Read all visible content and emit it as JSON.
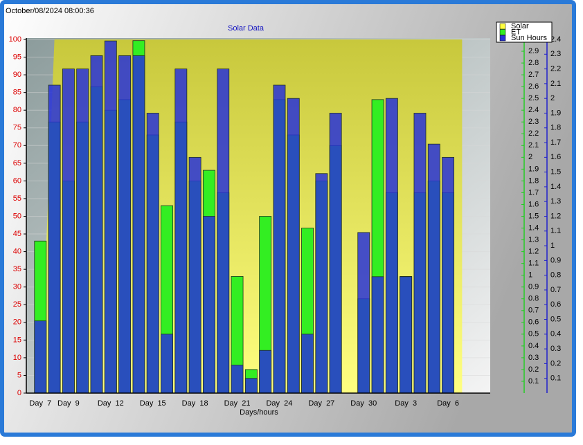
{
  "timestamp": "October/08/2024 08:00:36",
  "chart_data": {
    "type": "bar",
    "title": "Solar Data",
    "xlabel": "Days/hours",
    "categories": [
      "Day  7",
      null,
      "Day  9",
      null,
      null,
      "Day  12",
      null,
      null,
      "Day  15",
      null,
      null,
      "Day  18",
      null,
      null,
      "Day  21",
      null,
      null,
      "Day  24",
      null,
      null,
      "Day  27",
      null,
      null,
      "Day  30",
      null,
      null,
      "Day  3",
      null,
      null,
      "Day  6",
      null
    ],
    "series": [
      {
        "name": "Solar",
        "color": "#ffff40",
        "axis": "y",
        "type": "area",
        "values": [
          0,
          100,
          100,
          100,
          100,
          100,
          100,
          100,
          100,
          100,
          100,
          100,
          100,
          100,
          100,
          100,
          100,
          100,
          100,
          100,
          100,
          100,
          100,
          100,
          100,
          100,
          100,
          100,
          100,
          100,
          100
        ]
      },
      {
        "name": "ET",
        "color": "#33ee22",
        "axis": "y2",
        "values": [
          1.29,
          2.3,
          1.8,
          2.3,
          2.6,
          2.4,
          2.49,
          2.99,
          2.19,
          1.59,
          2.3,
          1.8,
          1.89,
          1.7,
          0.99,
          0.2,
          1.5,
          2.49,
          2.19,
          1.4,
          1.8,
          2.1,
          0,
          0.8,
          2.49,
          1.7,
          0.99,
          1.7,
          1.8,
          1.7,
          0
        ]
      },
      {
        "name": "Sun Hours",
        "color": "#2832d7",
        "axis": "y3",
        "values": [
          0.49,
          2.09,
          2.2,
          2.2,
          2.29,
          2.39,
          2.29,
          2.29,
          1.9,
          0.4,
          2.2,
          1.6,
          1.2,
          2.2,
          0.19,
          0.1,
          0.29,
          2.09,
          2.0,
          0.4,
          1.49,
          1.9,
          0,
          1.09,
          0.79,
          2.0,
          0.79,
          1.9,
          1.69,
          1.6,
          0
        ]
      }
    ],
    "ylim": [
      0,
      100
    ],
    "yticks": [
      0,
      5,
      10,
      15,
      20,
      25,
      30,
      35,
      40,
      45,
      50,
      55,
      60,
      65,
      70,
      75,
      80,
      85,
      90,
      95,
      100
    ],
    "y2lim": [
      0,
      3
    ],
    "y2ticks": [
      0.1,
      0.2,
      0.3,
      0.4,
      0.5,
      0.6,
      0.7,
      0.8,
      0.9,
      1,
      1.1,
      1.2,
      1.3,
      1.4,
      1.5,
      1.6,
      1.7,
      1.8,
      1.9,
      2,
      2.1,
      2.2,
      2.3,
      2.4,
      2.5,
      2.6,
      2.7,
      2.8,
      2.9
    ],
    "y3lim": [
      0,
      2.4
    ],
    "y3ticks": [
      0.1,
      0.2,
      0.3,
      0.4,
      0.5,
      0.6,
      0.7,
      0.8,
      0.9,
      1,
      1.1,
      1.2,
      1.3,
      1.4,
      1.5,
      1.6,
      1.7,
      1.8,
      1.9,
      2,
      2.1,
      2.2,
      2.3,
      2.4
    ],
    "grid": true,
    "legend": "top-right"
  }
}
